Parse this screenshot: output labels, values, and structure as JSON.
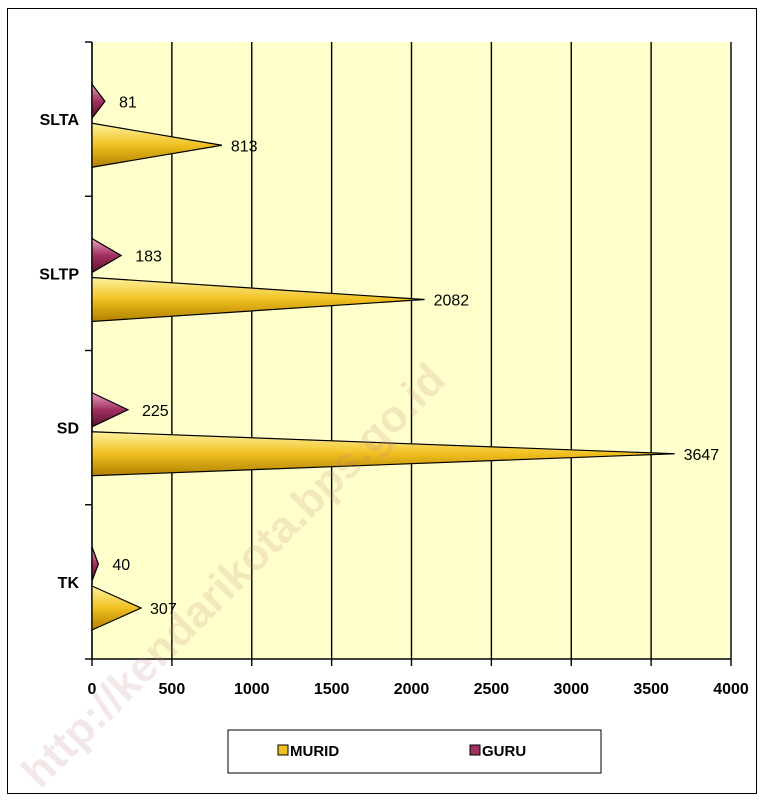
{
  "chart_data": {
    "type": "bar",
    "orientation": "horizontal",
    "categories": [
      "TK",
      "SD",
      "SLTP",
      "SLTA"
    ],
    "series": [
      {
        "name": "MURID",
        "values": [
          307,
          3647,
          2082,
          813
        ]
      },
      {
        "name": "GURU",
        "values": [
          40,
          225,
          183,
          81
        ]
      }
    ],
    "x_ticks": [
      "0",
      "500",
      "1000",
      "1500",
      "2000",
      "2500",
      "3000",
      "3500",
      "4000"
    ],
    "xlim": [
      0,
      4000
    ],
    "grid": true,
    "legend_position": "bottom",
    "title": "",
    "xlabel": "",
    "ylabel": ""
  },
  "watermark": "http://kendarikota.bps.go.id",
  "colors": {
    "murid": "#f0c020",
    "guru": "#a03060",
    "plot_background": "#ffffcc",
    "grid": "#000000"
  }
}
